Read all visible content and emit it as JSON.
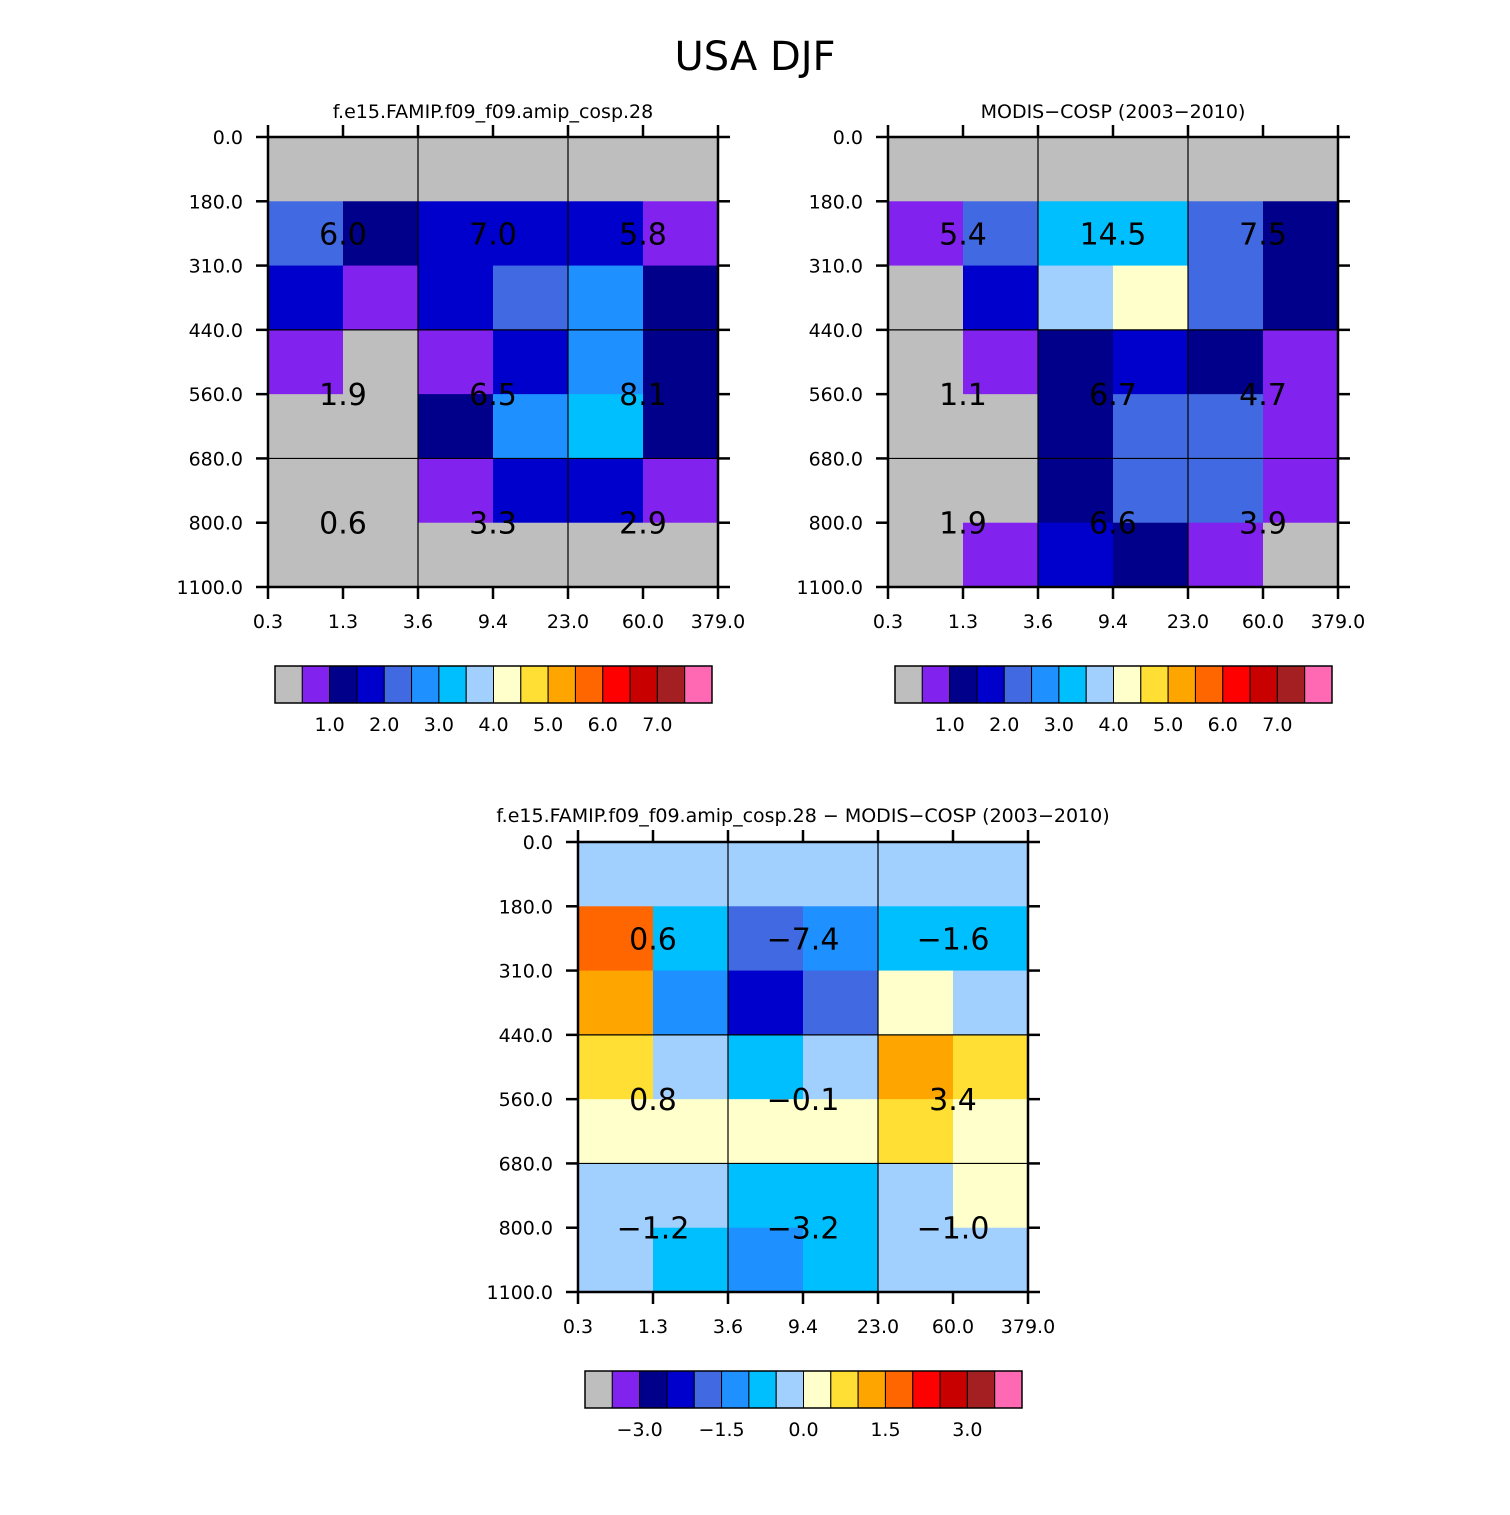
{
  "title": "USA DJF",
  "palette": [
    "#bebebe",
    "#8222ef",
    "#00008b",
    "#0000cd",
    "#4169e1",
    "#1e90ff",
    "#00bfff",
    "#a2d0fe",
    "#ffffcc",
    "#ffdf33",
    "#ffa500",
    "#ff6600",
    "#ff0000",
    "#c80000",
    "#a31f22",
    "#ff69b4"
  ],
  "chart_data": [
    {
      "type": "heatmap",
      "name": "model",
      "title": "f.e15.FAMIP.f09_f09.amip_cosp.28",
      "x_ticks": [
        "0.3",
        "1.3",
        "3.6",
        "9.4",
        "23.0",
        "60.0",
        "379.0"
      ],
      "y_ticks": [
        "0.0",
        "180.0",
        "310.0",
        "440.0",
        "560.0",
        "680.0",
        "800.0",
        "1100.0"
      ],
      "xlabel": "",
      "ylabel": "",
      "cell_color_index": [
        [
          0,
          0,
          0,
          0,
          0,
          0
        ],
        [
          4,
          2,
          3,
          3,
          3,
          1
        ],
        [
          3,
          1,
          3,
          4,
          5,
          2
        ],
        [
          1,
          0,
          1,
          3,
          5,
          2
        ],
        [
          0,
          0,
          2,
          5,
          6,
          2
        ],
        [
          0,
          0,
          1,
          3,
          3,
          1
        ],
        [
          0,
          0,
          0,
          0,
          0,
          0
        ]
      ],
      "group_values": [
        [
          "6.0",
          "7.0",
          "5.8"
        ],
        [
          "1.9",
          "6.5",
          "8.1"
        ],
        [
          "0.6",
          "3.3",
          "2.9"
        ]
      ],
      "colorbar_labels": [
        "1.0",
        "2.0",
        "3.0",
        "4.0",
        "5.0",
        "6.0",
        "7.0"
      ]
    },
    {
      "type": "heatmap",
      "name": "obs",
      "title": "MODIS-COSP (2003-2010)",
      "x_ticks": [
        "0.3",
        "1.3",
        "3.6",
        "9.4",
        "23.0",
        "60.0",
        "379.0"
      ],
      "y_ticks": [
        "0.0",
        "180.0",
        "310.0",
        "440.0",
        "560.0",
        "680.0",
        "800.0",
        "1100.0"
      ],
      "xlabel": "",
      "ylabel": "",
      "cell_color_index": [
        [
          0,
          0,
          0,
          0,
          0,
          0
        ],
        [
          1,
          4,
          6,
          6,
          4,
          2
        ],
        [
          0,
          3,
          7,
          8,
          4,
          2
        ],
        [
          0,
          1,
          2,
          3,
          2,
          1
        ],
        [
          0,
          0,
          2,
          4,
          4,
          1
        ],
        [
          0,
          0,
          2,
          4,
          4,
          1
        ],
        [
          0,
          1,
          3,
          2,
          1,
          0
        ]
      ],
      "group_values": [
        [
          "5.4",
          "14.5",
          "7.5"
        ],
        [
          "1.1",
          "6.7",
          "4.7"
        ],
        [
          "1.9",
          "6.6",
          "3.9"
        ]
      ],
      "colorbar_labels": [
        "1.0",
        "2.0",
        "3.0",
        "4.0",
        "5.0",
        "6.0",
        "7.0"
      ]
    },
    {
      "type": "heatmap",
      "name": "diff",
      "title": "f.e15.FAMIP.f09_f09.amip_cosp.28 - MODIS-COSP (2003-2010)",
      "x_ticks": [
        "0.3",
        "1.3",
        "3.6",
        "9.4",
        "23.0",
        "60.0",
        "379.0"
      ],
      "y_ticks": [
        "0.0",
        "180.0",
        "310.0",
        "440.0",
        "560.0",
        "680.0",
        "800.0",
        "1100.0"
      ],
      "xlabel": "",
      "ylabel": "",
      "cell_color_index": [
        [
          7,
          7,
          7,
          7,
          7,
          7
        ],
        [
          11,
          6,
          4,
          5,
          6,
          6
        ],
        [
          10,
          5,
          3,
          4,
          8,
          7
        ],
        [
          9,
          7,
          6,
          7,
          10,
          9
        ],
        [
          8,
          8,
          8,
          8,
          9,
          8
        ],
        [
          7,
          7,
          6,
          6,
          7,
          8
        ],
        [
          7,
          6,
          5,
          6,
          7,
          7
        ]
      ],
      "group_values": [
        [
          "0.6",
          "-7.4",
          "-1.6"
        ],
        [
          "0.8",
          "-0.1",
          "3.4"
        ],
        [
          "-1.2",
          "-3.2",
          "-1.0"
        ]
      ],
      "colorbar_labels": [
        "-3.0",
        "-1.5",
        "0.0",
        "1.5",
        "3.0"
      ]
    }
  ]
}
